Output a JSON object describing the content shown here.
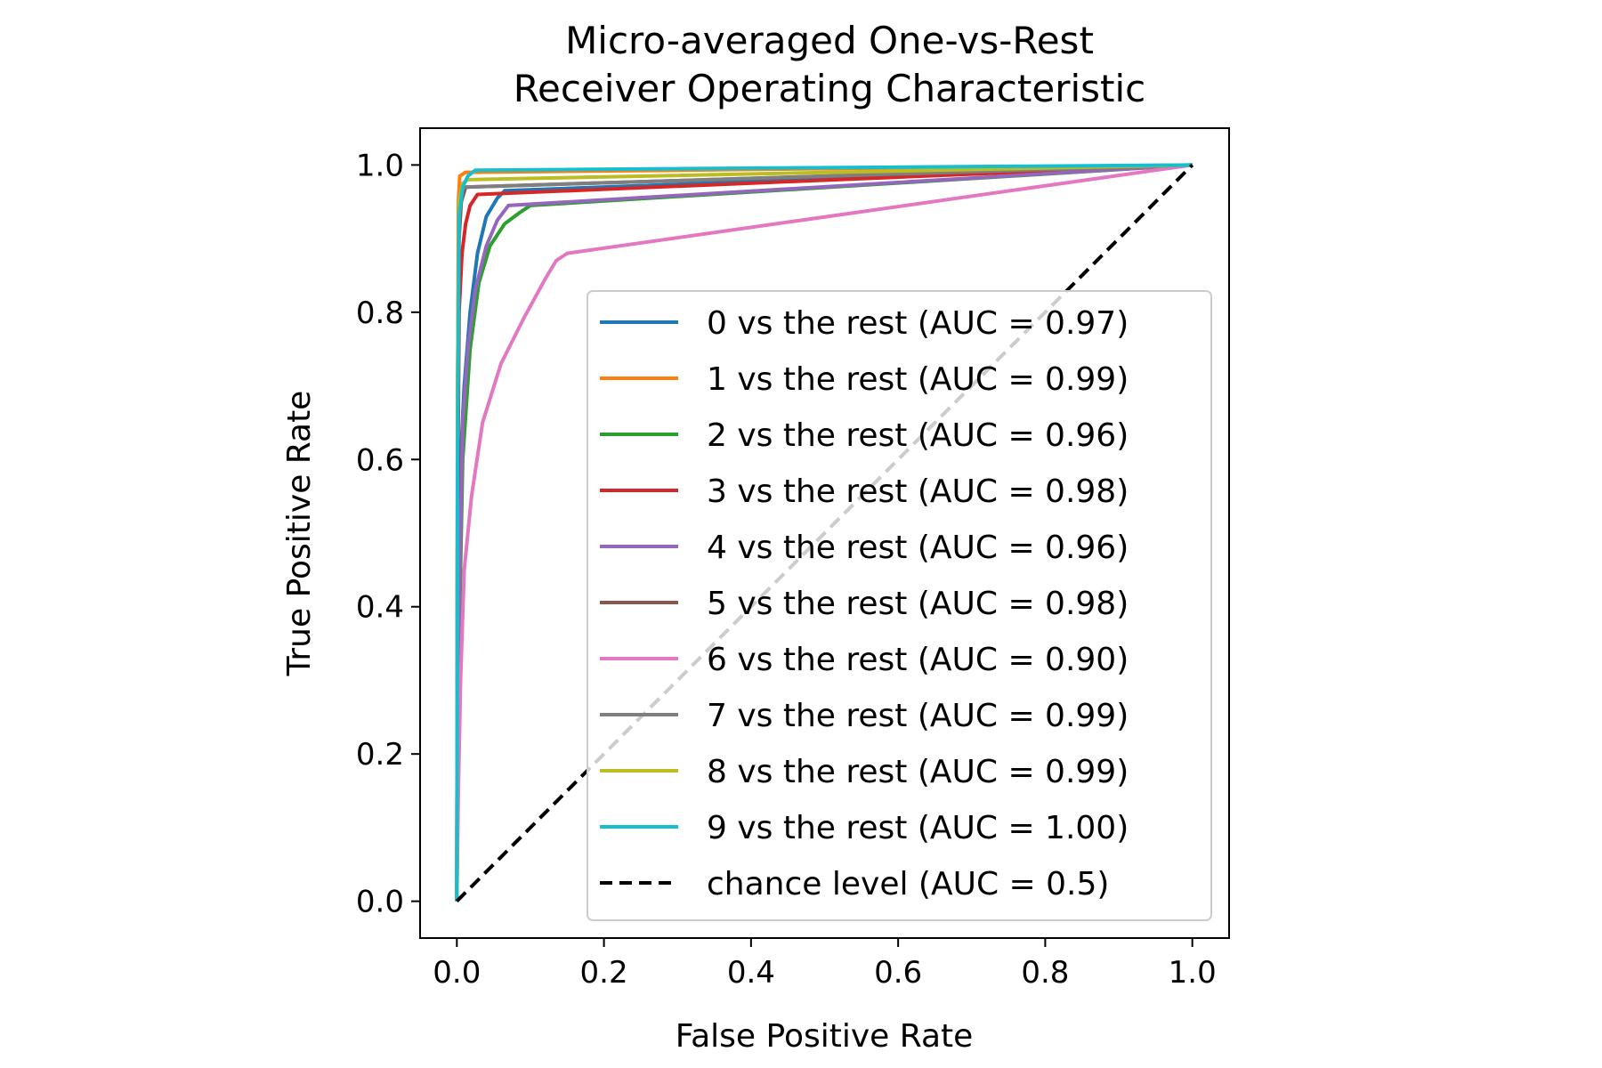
{
  "chart_data": {
    "type": "line",
    "title": [
      "Micro-averaged One-vs-Rest",
      "Receiver Operating Characteristic"
    ],
    "xlabel": "False Positive Rate",
    "ylabel": "True Positive Rate",
    "xlim": [
      -0.05,
      1.05
    ],
    "ylim": [
      -0.05,
      1.05
    ],
    "xticks": [
      "0.0",
      "0.2",
      "0.4",
      "0.6",
      "0.8",
      "1.0"
    ],
    "yticks": [
      "0.0",
      "0.2",
      "0.4",
      "0.6",
      "0.8",
      "1.0"
    ],
    "grid": false,
    "legend_position": "lower-right",
    "series": [
      {
        "name": "0 vs the rest (AUC = 0.97)",
        "color": "#1f77b4",
        "dash": "solid",
        "points": [
          [
            0,
            0
          ],
          [
            0.002,
            0.4
          ],
          [
            0.005,
            0.6
          ],
          [
            0.01,
            0.7
          ],
          [
            0.018,
            0.8
          ],
          [
            0.028,
            0.88
          ],
          [
            0.04,
            0.93
          ],
          [
            0.055,
            0.955
          ],
          [
            0.065,
            0.965
          ],
          [
            1,
            1
          ]
        ]
      },
      {
        "name": "1 vs the rest (AUC = 0.99)",
        "color": "#ff7f0e",
        "dash": "solid",
        "points": [
          [
            0,
            0
          ],
          [
            0.001,
            0.6
          ],
          [
            0.002,
            0.95
          ],
          [
            0.004,
            0.985
          ],
          [
            0.012,
            0.99
          ],
          [
            1,
            1
          ]
        ]
      },
      {
        "name": "2 vs the rest (AUC = 0.96)",
        "color": "#2ca02c",
        "dash": "solid",
        "points": [
          [
            0,
            0
          ],
          [
            0.003,
            0.35
          ],
          [
            0.008,
            0.6
          ],
          [
            0.018,
            0.75
          ],
          [
            0.03,
            0.84
          ],
          [
            0.045,
            0.89
          ],
          [
            0.065,
            0.92
          ],
          [
            0.085,
            0.935
          ],
          [
            0.1,
            0.945
          ],
          [
            1,
            1
          ]
        ]
      },
      {
        "name": "3 vs the rest (AUC = 0.98)",
        "color": "#d62728",
        "dash": "solid",
        "points": [
          [
            0,
            0
          ],
          [
            0.001,
            0.5
          ],
          [
            0.003,
            0.8
          ],
          [
            0.007,
            0.88
          ],
          [
            0.012,
            0.92
          ],
          [
            0.018,
            0.945
          ],
          [
            0.028,
            0.96
          ],
          [
            1,
            1
          ]
        ]
      },
      {
        "name": "4 vs the rest (AUC = 0.96)",
        "color": "#9467bd",
        "dash": "solid",
        "points": [
          [
            0,
            0
          ],
          [
            0.003,
            0.4
          ],
          [
            0.008,
            0.65
          ],
          [
            0.015,
            0.75
          ],
          [
            0.025,
            0.83
          ],
          [
            0.04,
            0.89
          ],
          [
            0.055,
            0.925
          ],
          [
            0.07,
            0.945
          ],
          [
            1,
            1
          ]
        ]
      },
      {
        "name": "5 vs the rest (AUC = 0.98)",
        "color": "#8c564b",
        "dash": "solid",
        "points": [
          [
            0,
            0
          ],
          [
            0.001,
            0.6
          ],
          [
            0.003,
            0.9
          ],
          [
            0.006,
            0.95
          ],
          [
            0.012,
            0.97
          ],
          [
            1,
            1
          ]
        ]
      },
      {
        "name": "6 vs the rest (AUC = 0.90)",
        "color": "#e377c2",
        "dash": "solid",
        "points": [
          [
            0,
            0
          ],
          [
            0.002,
            0.15
          ],
          [
            0.005,
            0.3
          ],
          [
            0.01,
            0.45
          ],
          [
            0.02,
            0.55
          ],
          [
            0.035,
            0.65
          ],
          [
            0.06,
            0.73
          ],
          [
            0.09,
            0.79
          ],
          [
            0.12,
            0.845
          ],
          [
            0.135,
            0.87
          ],
          [
            0.15,
            0.88
          ],
          [
            1,
            1
          ]
        ]
      },
      {
        "name": "7 vs the rest (AUC = 0.99)",
        "color": "#7f7f7f",
        "dash": "solid",
        "points": [
          [
            0,
            0
          ],
          [
            0.001,
            0.7
          ],
          [
            0.003,
            0.94
          ],
          [
            0.006,
            0.965
          ],
          [
            0.01,
            0.97
          ],
          [
            1,
            1
          ]
        ]
      },
      {
        "name": "8 vs the rest (AUC = 0.99)",
        "color": "#bcbd22",
        "dash": "solid",
        "points": [
          [
            0,
            0
          ],
          [
            0.001,
            0.7
          ],
          [
            0.003,
            0.95
          ],
          [
            0.008,
            0.975
          ],
          [
            0.015,
            0.98
          ],
          [
            1,
            1
          ]
        ]
      },
      {
        "name": "9 vs the rest (AUC = 1.00)",
        "color": "#17becf",
        "dash": "solid",
        "points": [
          [
            0,
            0
          ],
          [
            0.001,
            0.6
          ],
          [
            0.003,
            0.93
          ],
          [
            0.008,
            0.97
          ],
          [
            0.015,
            0.985
          ],
          [
            0.025,
            0.993
          ],
          [
            1,
            1
          ]
        ]
      },
      {
        "name": "chance level (AUC = 0.5)",
        "color": "#000000",
        "dash": "dashed",
        "points": [
          [
            0,
            0
          ],
          [
            1,
            1
          ]
        ]
      }
    ]
  }
}
